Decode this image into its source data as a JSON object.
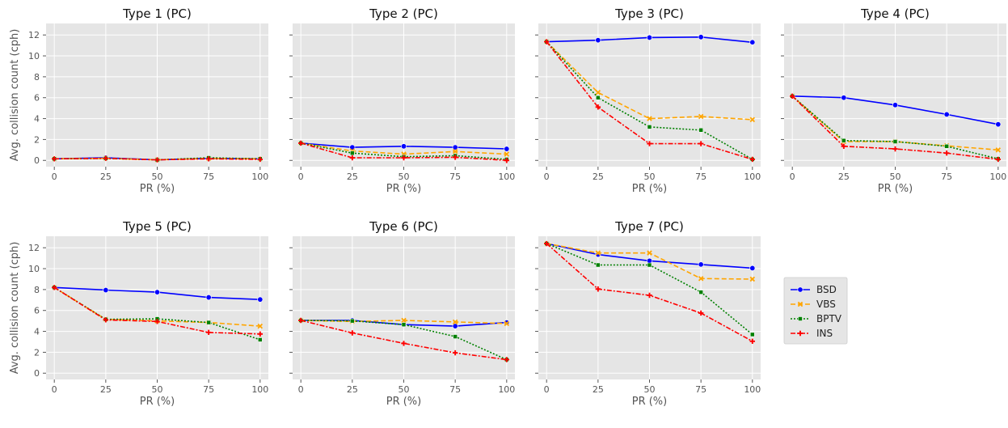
{
  "chart_data": {
    "type": "line",
    "style": "ggplot grey background, white grid",
    "x": [
      0,
      25,
      50,
      75,
      100
    ],
    "xticks": [
      "0",
      "25",
      "50",
      "75",
      "100"
    ],
    "yticks": [
      "0",
      "2",
      "4",
      "6",
      "8",
      "10",
      "12"
    ],
    "ylim": [
      -0.6,
      13.1
    ],
    "xlim": [
      -4,
      104
    ],
    "xlabel": "PR (%)",
    "ylabel": "Avg. collision count (cph)",
    "legend": {
      "placement": "right, centered beside bottom row",
      "entries": [
        {
          "name": "BSD",
          "color": "#0000ff",
          "marker": "circle",
          "dash": "solid"
        },
        {
          "name": "VBS",
          "color": "#ffa500",
          "marker": "x",
          "dash": "dashed"
        },
        {
          "name": "BPTV",
          "color": "#008000",
          "marker": "square",
          "dash": "dotted"
        },
        {
          "name": "INS",
          "color": "#ff0000",
          "marker": "plus",
          "dash": "dashdot"
        }
      ]
    },
    "panels": [
      {
        "title": "Type 1 (PC)",
        "series": [
          {
            "name": "BSD",
            "values": [
              0.15,
              0.25,
              0.05,
              0.2,
              0.15
            ]
          },
          {
            "name": "VBS",
            "values": [
              0.15,
              0.2,
              0.05,
              0.2,
              0.15
            ]
          },
          {
            "name": "BPTV",
            "values": [
              0.15,
              0.2,
              0.05,
              0.25,
              0.15
            ]
          },
          {
            "name": "INS",
            "values": [
              0.15,
              0.2,
              0.05,
              0.15,
              0.1
            ]
          }
        ]
      },
      {
        "title": "Type 2 (PC)",
        "series": [
          {
            "name": "BSD",
            "values": [
              1.65,
              1.25,
              1.35,
              1.25,
              1.1
            ]
          },
          {
            "name": "VBS",
            "values": [
              1.65,
              0.9,
              0.6,
              0.85,
              0.6
            ]
          },
          {
            "name": "BPTV",
            "values": [
              1.65,
              0.7,
              0.35,
              0.45,
              0.1
            ]
          },
          {
            "name": "INS",
            "values": [
              1.65,
              0.25,
              0.25,
              0.3,
              0.0
            ]
          }
        ]
      },
      {
        "title": "Type 3 (PC)",
        "series": [
          {
            "name": "BSD",
            "values": [
              11.35,
              11.5,
              11.75,
              11.8,
              11.3
            ]
          },
          {
            "name": "VBS",
            "values": [
              11.35,
              6.5,
              4.0,
              4.2,
              3.9
            ]
          },
          {
            "name": "BPTV",
            "values": [
              11.35,
              6.0,
              3.2,
              2.9,
              0.1
            ]
          },
          {
            "name": "INS",
            "values": [
              11.35,
              5.1,
              1.6,
              1.6,
              0.1
            ]
          }
        ]
      },
      {
        "title": "Type 4 (PC)",
        "series": [
          {
            "name": "BSD",
            "values": [
              6.15,
              6.0,
              5.3,
              4.4,
              3.45
            ]
          },
          {
            "name": "VBS",
            "values": [
              6.15,
              1.8,
              1.8,
              1.4,
              1.0
            ]
          },
          {
            "name": "BPTV",
            "values": [
              6.15,
              1.9,
              1.8,
              1.35,
              0.15
            ]
          },
          {
            "name": "INS",
            "values": [
              6.15,
              1.35,
              1.1,
              0.7,
              0.1
            ]
          }
        ]
      },
      {
        "title": "Type 5 (PC)",
        "series": [
          {
            "name": "BSD",
            "values": [
              8.2,
              7.95,
              7.75,
              7.25,
              7.05
            ]
          },
          {
            "name": "VBS",
            "values": [
              8.2,
              5.15,
              5.0,
              4.85,
              4.5
            ]
          },
          {
            "name": "BPTV",
            "values": [
              8.2,
              5.15,
              5.2,
              4.85,
              3.2
            ]
          },
          {
            "name": "INS",
            "values": [
              8.2,
              5.1,
              4.95,
              3.9,
              3.75
            ]
          }
        ]
      },
      {
        "title": "Type 6 (PC)",
        "series": [
          {
            "name": "BSD",
            "values": [
              5.05,
              5.05,
              4.65,
              4.5,
              4.85
            ]
          },
          {
            "name": "VBS",
            "values": [
              5.05,
              4.95,
              5.05,
              4.9,
              4.75
            ]
          },
          {
            "name": "BPTV",
            "values": [
              5.05,
              5.0,
              4.65,
              3.5,
              1.3
            ]
          },
          {
            "name": "INS",
            "values": [
              5.05,
              3.85,
              2.85,
              1.95,
              1.3
            ]
          }
        ]
      },
      {
        "title": "Type 7 (PC)",
        "series": [
          {
            "name": "BSD",
            "values": [
              12.4,
              11.35,
              10.75,
              10.4,
              10.05
            ]
          },
          {
            "name": "VBS",
            "values": [
              12.4,
              11.5,
              11.5,
              9.05,
              9.0
            ]
          },
          {
            "name": "BPTV",
            "values": [
              12.4,
              10.35,
              10.35,
              7.75,
              3.7
            ]
          },
          {
            "name": "INS",
            "values": [
              12.4,
              8.05,
              7.45,
              5.75,
              3.05
            ]
          }
        ]
      }
    ]
  }
}
